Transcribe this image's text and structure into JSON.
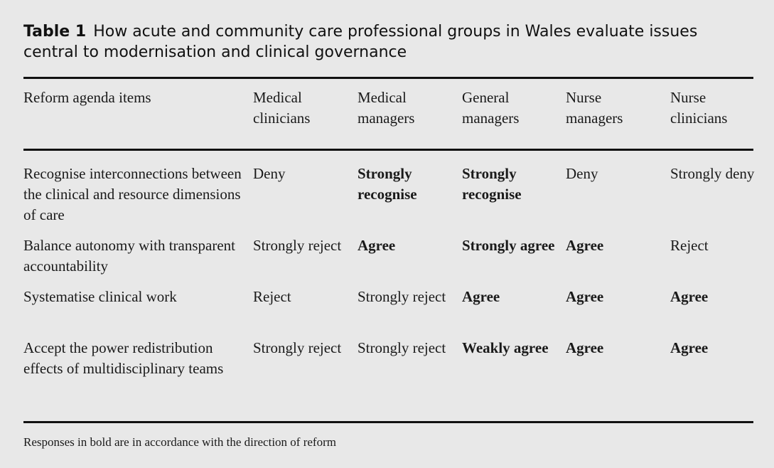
{
  "caption": {
    "label": "Table 1",
    "text": "How acute and community care professional groups in Wales evaluate issues central to modernisation and clinical governance"
  },
  "headers": [
    "Reform agenda items",
    "Medical clinicians",
    "Medical managers",
    "General managers",
    "Nurse managers",
    "Nurse clinicians"
  ],
  "rows": [
    {
      "item": "Recognise interconnections between the clinical and resource dimensions of care",
      "cells": [
        {
          "text": "Deny",
          "bold": false
        },
        {
          "text": "Strongly recognise",
          "bold": true
        },
        {
          "text": "Strongly recognise",
          "bold": true
        },
        {
          "text": "Deny",
          "bold": false
        },
        {
          "text": "Strongly deny",
          "bold": false
        }
      ]
    },
    {
      "item": "Balance autonomy with transparent accountability",
      "cells": [
        {
          "text": "Strongly reject",
          "bold": false
        },
        {
          "text": "Agree",
          "bold": true
        },
        {
          "text": "Strongly agree",
          "bold": true
        },
        {
          "text": "Agree",
          "bold": true
        },
        {
          "text": "Reject",
          "bold": false
        }
      ]
    },
    {
      "item": "Systematise clinical work",
      "cells": [
        {
          "text": "Reject",
          "bold": false
        },
        {
          "text": "Strongly reject",
          "bold": false
        },
        {
          "text": "Agree",
          "bold": true
        },
        {
          "text": "Agree",
          "bold": true
        },
        {
          "text": "Agree",
          "bold": true
        }
      ]
    },
    {
      "item": "Accept the power redistribution effects of multidisciplinary teams",
      "cells": [
        {
          "text": "Strongly reject",
          "bold": false
        },
        {
          "text": "Strongly reject",
          "bold": false
        },
        {
          "text": "Weakly agree",
          "bold": true
        },
        {
          "text": "Agree",
          "bold": true
        },
        {
          "text": "Agree",
          "bold": true
        }
      ]
    }
  ],
  "footnote": "Responses in bold are in accordance with the direction of reform"
}
